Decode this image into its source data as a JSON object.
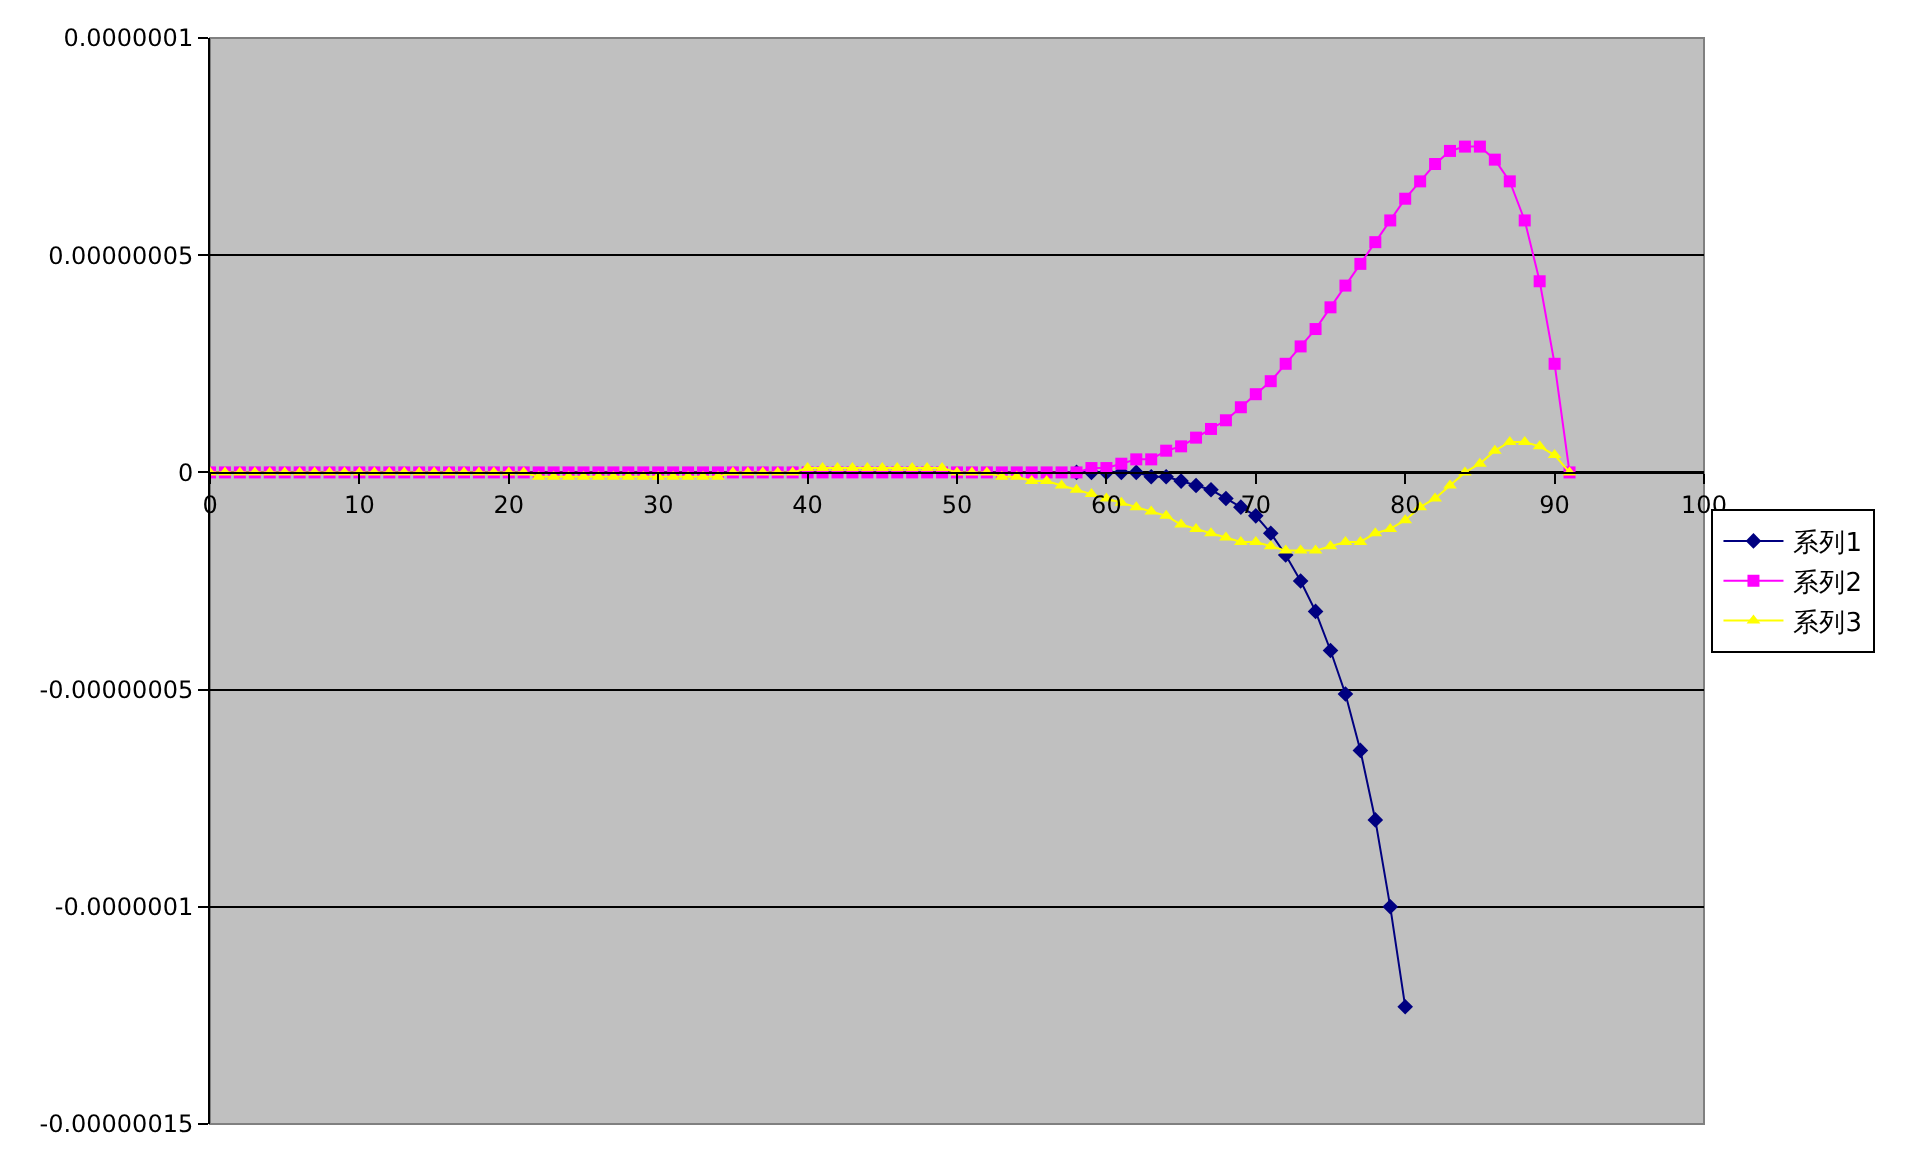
{
  "chart_data": {
    "type": "line",
    "x": [
      0,
      1,
      2,
      3,
      4,
      5,
      6,
      7,
      8,
      9,
      10,
      11,
      12,
      13,
      14,
      15,
      16,
      17,
      18,
      19,
      20,
      21,
      22,
      23,
      24,
      25,
      26,
      27,
      28,
      29,
      30,
      31,
      32,
      33,
      34,
      35,
      36,
      37,
      38,
      39,
      40,
      41,
      42,
      43,
      44,
      45,
      46,
      47,
      48,
      49,
      50,
      51,
      52,
      53,
      54,
      55,
      56,
      57,
      58,
      59,
      60,
      61,
      62,
      63,
      64,
      65,
      66,
      67,
      68,
      69,
      70,
      71,
      72,
      73,
      74,
      75,
      76,
      77,
      78,
      79,
      80,
      81,
      82,
      83,
      84,
      85,
      86,
      87,
      88,
      89,
      90,
      91
    ],
    "series": [
      {
        "name": "系列1",
        "color": "#000080",
        "marker": "diamond",
        "values": [
          null,
          null,
          null,
          null,
          null,
          null,
          null,
          null,
          null,
          null,
          null,
          null,
          null,
          null,
          null,
          null,
          null,
          null,
          null,
          null,
          null,
          null,
          null,
          null,
          null,
          null,
          null,
          null,
          null,
          null,
          null,
          null,
          null,
          null,
          null,
          null,
          null,
          null,
          null,
          null,
          null,
          null,
          null,
          null,
          null,
          null,
          null,
          null,
          null,
          null,
          null,
          null,
          null,
          null,
          null,
          null,
          null,
          null,
          0,
          0,
          0,
          0,
          0,
          -1e-09,
          -1e-09,
          -2e-09,
          -3e-09,
          -4e-09,
          -6e-09,
          -8e-09,
          -1e-08,
          -1.4e-08,
          -1.9e-08,
          -2.5e-08,
          -3.2e-08,
          -4.1e-08,
          -5.1e-08,
          -6.4e-08,
          -8e-08,
          -1e-07,
          -1.23e-07,
          null,
          null,
          null,
          null,
          null,
          null,
          null,
          null,
          null,
          null,
          null
        ]
      },
      {
        "name": "系列2",
        "color": "#ff00ff",
        "marker": "square",
        "values": [
          0,
          0,
          0,
          0,
          0,
          0,
          0,
          0,
          0,
          0,
          0,
          0,
          0,
          0,
          0,
          0,
          0,
          0,
          0,
          0,
          0,
          0,
          0,
          0,
          0,
          0,
          0,
          0,
          0,
          0,
          0,
          0,
          0,
          0,
          0,
          0,
          0,
          0,
          0,
          0,
          0,
          0,
          0,
          0,
          0,
          0,
          0,
          0,
          0,
          0,
          0,
          0,
          0,
          0,
          0,
          0,
          0,
          0,
          0,
          1e-09,
          1e-09,
          2e-09,
          3e-09,
          3e-09,
          5e-09,
          6e-09,
          8e-09,
          1e-08,
          1.2e-08,
          1.5e-08,
          1.8e-08,
          2.1e-08,
          2.5e-08,
          2.9e-08,
          3.3e-08,
          3.8e-08,
          4.3e-08,
          4.8e-08,
          5.3e-08,
          5.8e-08,
          6.3e-08,
          6.7e-08,
          7.1e-08,
          7.4e-08,
          7.5e-08,
          7.5e-08,
          7.2e-08,
          6.7e-08,
          5.8e-08,
          4.4e-08,
          2.5e-08,
          0
        ]
      },
      {
        "name": "系列3",
        "color": "#ffff00",
        "marker": "triangle",
        "values": [
          0,
          0,
          0,
          0,
          0,
          0,
          0,
          0,
          0,
          0,
          0,
          0,
          0,
          0,
          0,
          0,
          0,
          0,
          0,
          0,
          0,
          0,
          -1e-09,
          -1e-09,
          -1e-09,
          -1e-09,
          -1e-09,
          -1e-09,
          -1e-09,
          -1e-09,
          -1e-09,
          -1e-09,
          -1e-09,
          -1e-09,
          -1e-09,
          0,
          0,
          0,
          0,
          0,
          1e-09,
          1e-09,
          1e-09,
          1e-09,
          1e-09,
          1e-09,
          1e-09,
          1e-09,
          1e-09,
          1e-09,
          0,
          0,
          0,
          -1e-09,
          -1e-09,
          -2e-09,
          -2e-09,
          -3e-09,
          -4e-09,
          -5e-09,
          -6e-09,
          -7e-09,
          -8e-09,
          -9e-09,
          -1e-08,
          -1.2e-08,
          -1.3e-08,
          -1.4e-08,
          -1.5e-08,
          -1.6e-08,
          -1.6e-08,
          -1.7e-08,
          -1.8e-08,
          -1.8e-08,
          -1.8e-08,
          -1.7e-08,
          -1.6e-08,
          -1.6e-08,
          -1.4e-08,
          -1.3e-08,
          -1.1e-08,
          -8e-09,
          -6e-09,
          -3e-09,
          0,
          2e-09,
          5e-09,
          7e-09,
          7e-09,
          6e-09,
          4e-09,
          0
        ]
      }
    ],
    "xlim": [
      0,
      100
    ],
    "xticks": [
      0,
      10,
      20,
      30,
      40,
      50,
      60,
      70,
      80,
      90,
      100
    ],
    "ylim": [
      -1.5e-07,
      1e-07
    ],
    "yticks": [
      {
        "value": -1.5e-07,
        "label": "-0.00000015"
      },
      {
        "value": -1e-07,
        "label": "-0.0000001"
      },
      {
        "value": -5e-08,
        "label": "-0.00000005"
      },
      {
        "value": 0,
        "label": "0"
      },
      {
        "value": 5e-08,
        "label": "0.00000005"
      },
      {
        "value": 1e-07,
        "label": "0.0000001"
      }
    ],
    "grid": "y",
    "legend": "right",
    "line_style": "solid"
  }
}
